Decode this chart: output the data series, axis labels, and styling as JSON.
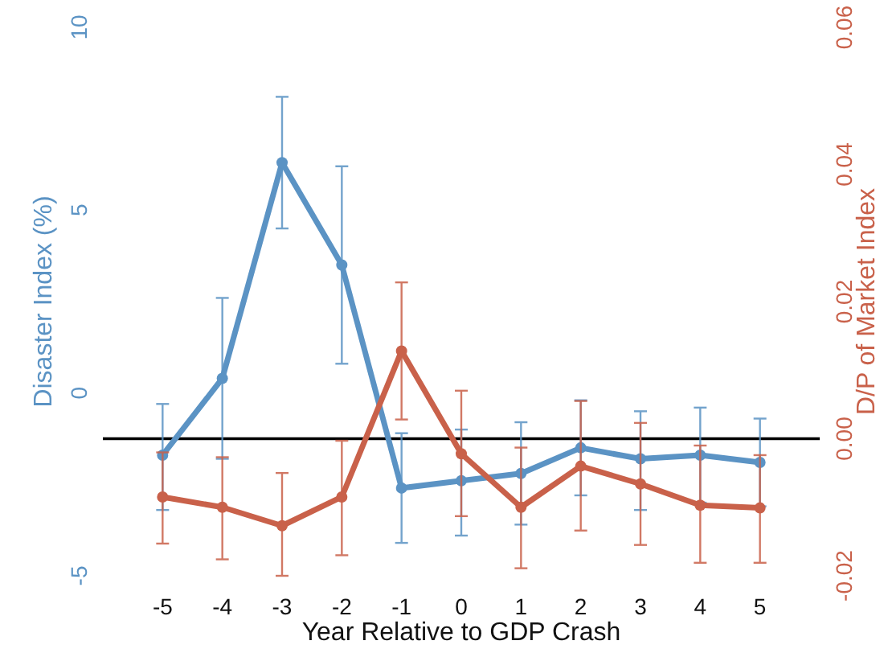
{
  "chart_data": {
    "type": "line",
    "xlabel": "Year Relative to GDP Crash",
    "ylabel": "Disaster Index (%)",
    "y2label": "D/P of Market Index",
    "categories": [
      "-5",
      "-4",
      "-3",
      "-2",
      "-1",
      "0",
      "1",
      "2",
      "3",
      "4",
      "5"
    ],
    "ylim": [
      -5,
      10
    ],
    "yticks": [
      -5,
      0,
      5,
      10
    ],
    "y2lim": [
      -0.02,
      0.06
    ],
    "y2ticks": [
      {
        "value": -0.02,
        "label": "-0.02"
      },
      {
        "value": 0,
        "label": "0.00"
      },
      {
        "value": 0.02,
        "label": "0.02"
      },
      {
        "value": 0.04,
        "label": "0.04"
      },
      {
        "value": 0.06,
        "label": "0.06"
      }
    ],
    "marker": "circle",
    "grid": false,
    "series": [
      {
        "color": "#5b93c4",
        "values": [
          -1.7,
          0.4,
          6.3,
          3.5,
          -2.6,
          -2.4,
          -2.2,
          -1.5,
          -1.8,
          -1.7,
          -1.9
        ],
        "errors": [
          [
            -3.2,
            -0.3
          ],
          [
            -1.8,
            2.6
          ],
          [
            4.5,
            8.1
          ],
          [
            0.8,
            6.2
          ],
          [
            -4.1,
            -1.1
          ],
          [
            -3.9,
            -1.0
          ],
          [
            -3.6,
            -0.8
          ],
          [
            -2.8,
            -0.2
          ],
          [
            -3.2,
            -0.5
          ],
          [
            -3.0,
            -0.4
          ],
          [
            -3.1,
            -0.7
          ]
        ]
      },
      {
        "color": "#c9614a",
        "axis": "y2",
        "values": [
          -0.0085,
          -0.01,
          -0.0127,
          -0.0085,
          0.0128,
          -0.0022,
          -0.01,
          -0.004,
          -0.0066,
          -0.0097,
          -0.0101
        ],
        "errors": [
          [
            -0.0153,
            -0.002
          ],
          [
            -0.0176,
            -0.0027
          ],
          [
            -0.02,
            -0.005
          ],
          [
            -0.017,
            -0.0003
          ],
          [
            0.0028,
            0.0228
          ],
          [
            -0.0113,
            0.007
          ],
          [
            -0.0189,
            -0.0013
          ],
          [
            -0.0134,
            0.0055
          ],
          [
            -0.0155,
            0.0023
          ],
          [
            -0.0181,
            -0.001
          ],
          [
            -0.0181,
            -0.0024
          ]
        ]
      }
    ],
    "ref_lines": [
      {
        "axis": "y2",
        "value": 0,
        "color": "#000000"
      }
    ]
  }
}
